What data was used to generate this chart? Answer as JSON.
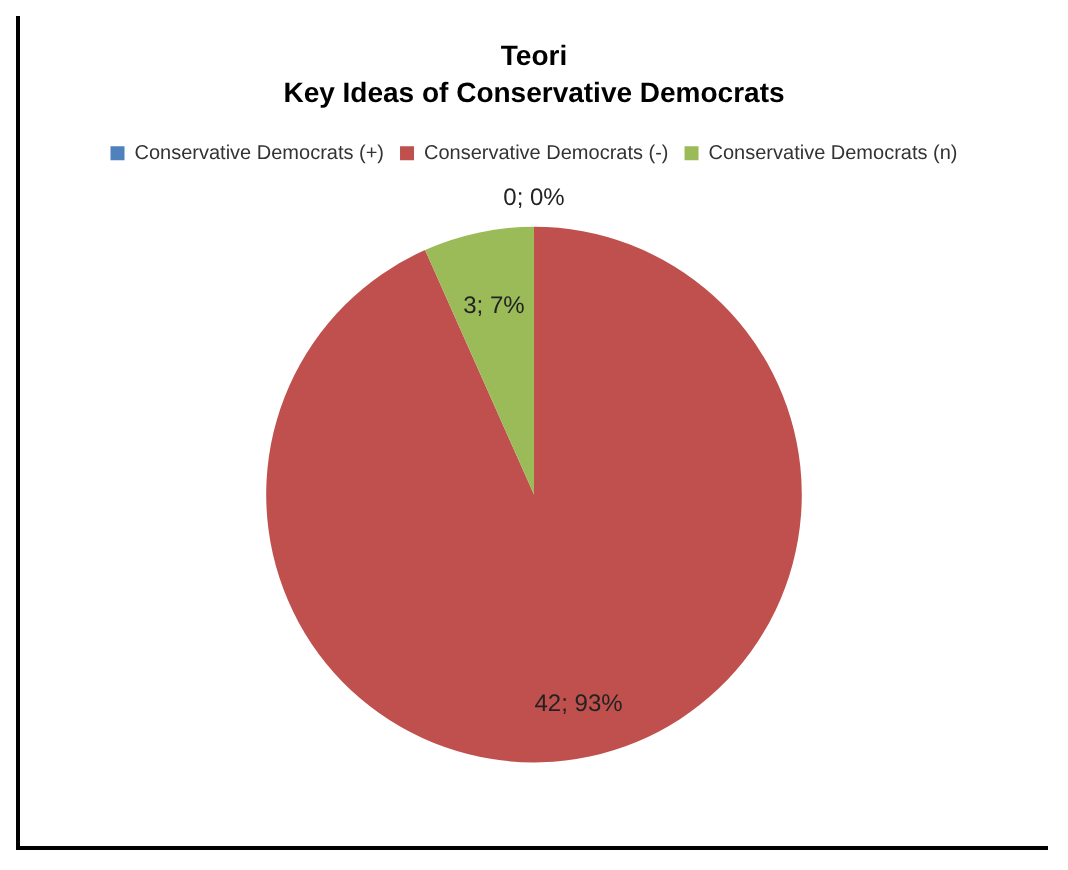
{
  "chart_data": {
    "type": "pie",
    "title": "Teori",
    "subtitle": "Key Ideas of Conservative Democrats",
    "categories": [
      "Conservative Democrats (+)",
      "Conservative Democrats (-)",
      "Conservative Democrats (n)"
    ],
    "values": [
      0,
      42,
      3
    ],
    "colors": [
      "#4f81bd",
      "#c0504d",
      "#9bbb59"
    ],
    "value_labels": [
      "0; 0%",
      "42; 93%",
      "3; 7%"
    ],
    "legend": "top"
  }
}
